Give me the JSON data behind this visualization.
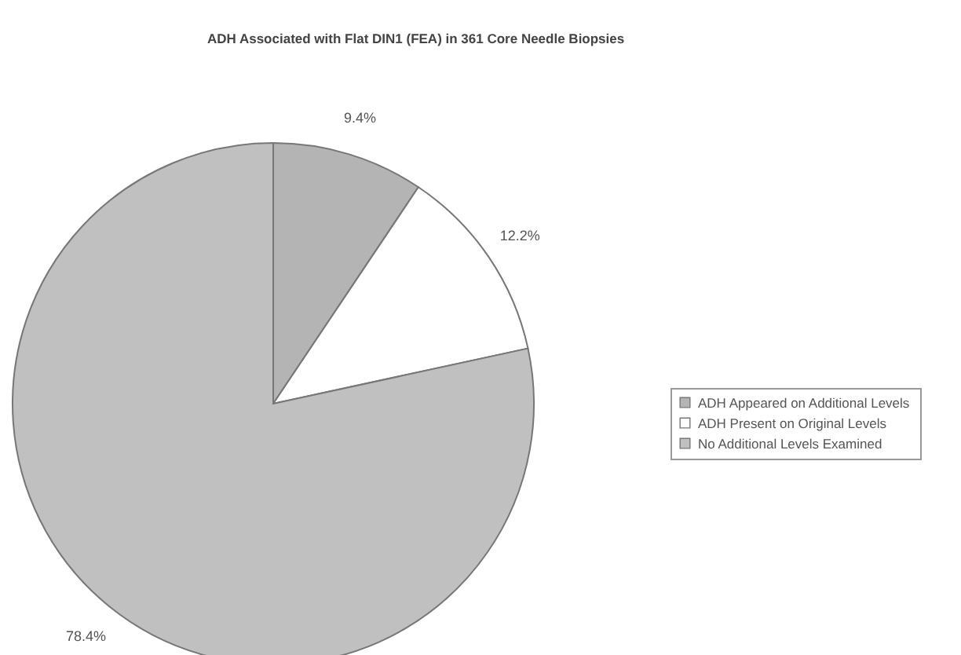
{
  "chart_data": {
    "type": "pie",
    "title": "ADH Associated with Flat DIN1 (FEA) in 361 Core Needle Biopsies",
    "categories": [
      "ADH Appeared on Additional Levels",
      "ADH Present on Original Levels",
      "No Additional Levels Examined"
    ],
    "values": [
      9.4,
      12.2,
      78.4
    ],
    "value_labels": [
      "9.4%",
      "12.2%",
      "78.4%"
    ],
    "colors": [
      "#b4b4b4",
      "#ffffff",
      "#c0c0c0"
    ],
    "legend": "right"
  }
}
